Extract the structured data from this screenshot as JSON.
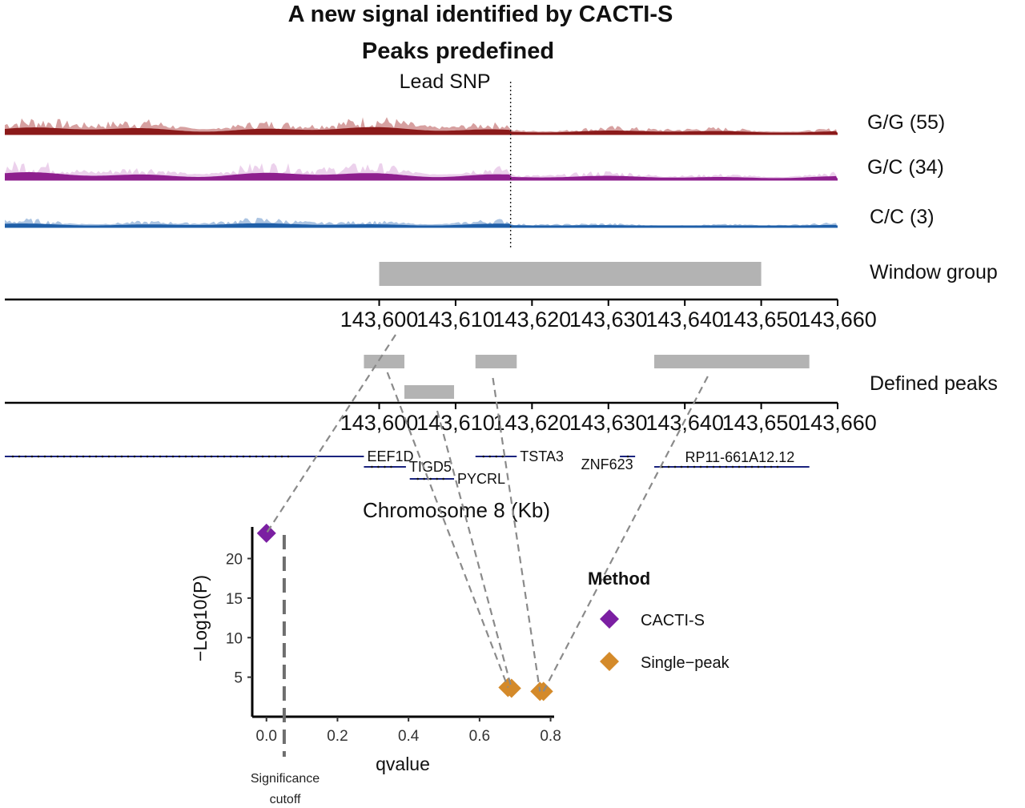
{
  "title": {
    "line1": "A new signal identified by CACTI-S",
    "line2": "Peaks predefined"
  },
  "lead_snp": {
    "label": "Lead SNP",
    "position_kb": 143617.2
  },
  "genome_axis": {
    "label": "Chromosome 8 (Kb)",
    "range_kb": [
      143551,
      143660
    ],
    "ticks": [
      143600,
      143610,
      143620,
      143630,
      143640,
      143650,
      143660
    ],
    "tick_labels": [
      "143,600",
      "143,610",
      "143,620",
      "143,630",
      "143,640",
      "143,650",
      "143,660"
    ]
  },
  "coverage_tracks": [
    {
      "label": "G/G (55)",
      "color": "#8b1a1a",
      "light_color": "#c98080"
    },
    {
      "label": "G/C (34)",
      "color": "#8e1f8e",
      "light_color": "#e6c2e6"
    },
    {
      "label": "C/C (3)",
      "color": "#1f5fa8",
      "light_color": "#8fb0d8"
    }
  ],
  "window_group": {
    "label": "Window group",
    "start_kb": 143600,
    "end_kb": 143650,
    "color": "#b3b3b3"
  },
  "defined_peaks": {
    "label": "Defined peaks",
    "color": "#b3b3b3",
    "peaks": [
      {
        "start_kb": 143598,
        "end_kb": 143603.3
      },
      {
        "start_kb": 143603.3,
        "end_kb": 143609.8
      },
      {
        "start_kb": 143612.6,
        "end_kb": 143618
      },
      {
        "start_kb": 143636,
        "end_kb": 143656.3
      }
    ]
  },
  "genes": [
    {
      "name": "EEF1D",
      "start_kb": 143551,
      "end_kb": 143598,
      "row": 0
    },
    {
      "name": "TIGD5",
      "start_kb": 143598,
      "end_kb": 143603.5,
      "row": 1
    },
    {
      "name": "PYCRL",
      "start_kb": 143604,
      "end_kb": 143609.8,
      "row": 2
    },
    {
      "name": "TSTA3",
      "start_kb": 143612.6,
      "end_kb": 143618,
      "row": 0
    },
    {
      "name": "ZNF623",
      "start_kb": 143631.5,
      "end_kb": 143633.5,
      "row": 0
    },
    {
      "name": "RP11-661A12.12",
      "start_kb": 143636,
      "end_kb": 143656.3,
      "row": 1
    }
  ],
  "gene_color": "#1a237e",
  "chart_data": {
    "type": "scatter",
    "xlabel": "qvalue",
    "ylabel": "−Log10(P)",
    "xlim": [
      -0.04,
      0.81
    ],
    "ylim": [
      0,
      24
    ],
    "x_ticks": [
      0.0,
      0.2,
      0.4,
      0.6,
      0.8
    ],
    "x_tick_labels": [
      "0.0",
      "0.2",
      "0.4",
      "0.6",
      "0.8"
    ],
    "y_ticks": [
      5,
      10,
      15,
      20
    ],
    "y_tick_labels": [
      "5",
      "10",
      "15",
      "20"
    ],
    "significance_cutoff": {
      "x": 0.05,
      "label_line1": "Significance",
      "label_line2": "cutoff"
    },
    "legend": {
      "title": "Method",
      "placement": "right"
    },
    "series": [
      {
        "name": "CACTI-S",
        "color": "#7b1fa2",
        "points": [
          {
            "x": 0.0,
            "y": 23.2
          }
        ]
      },
      {
        "name": "Single−peak",
        "color": "#d48a2a",
        "points": [
          {
            "x": 0.68,
            "y": 3.7
          },
          {
            "x": 0.69,
            "y": 3.6
          },
          {
            "x": 0.77,
            "y": 3.2
          },
          {
            "x": 0.78,
            "y": 3.2
          }
        ]
      }
    ],
    "connections": [
      {
        "from": "window_group",
        "to_series": 0,
        "to_point": 0
      },
      {
        "from": "peak",
        "peak_index": 0,
        "to_series": 1,
        "to_point": 0
      },
      {
        "from": "peak",
        "peak_index": 1,
        "to_series": 1,
        "to_point": 1
      },
      {
        "from": "peak",
        "peak_index": 2,
        "to_series": 1,
        "to_point": 2
      },
      {
        "from": "peak",
        "peak_index": 3,
        "to_series": 1,
        "to_point": 3
      }
    ]
  }
}
